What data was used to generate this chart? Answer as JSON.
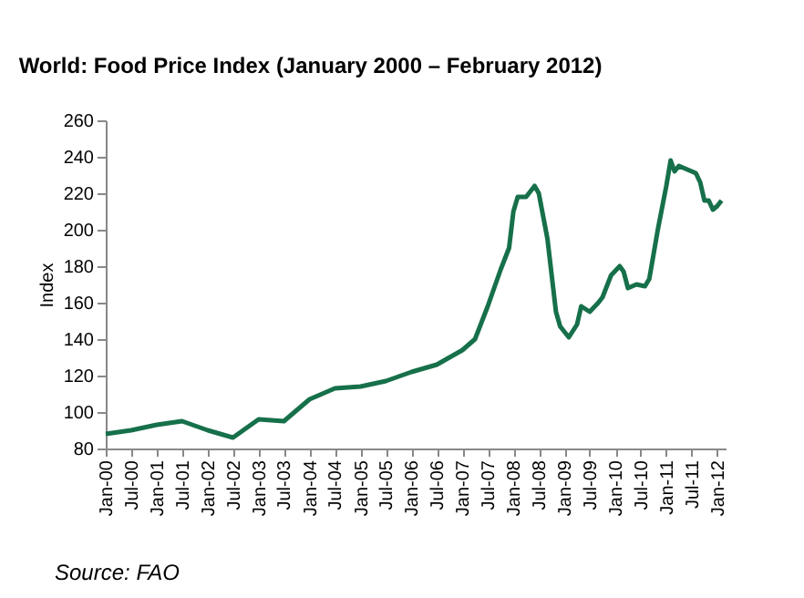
{
  "chart_data": {
    "type": "line",
    "title": "World: Food Price Index (January 2000 – February 2012)",
    "ylabel": "Index",
    "annotations": [
      "Source: FAO"
    ],
    "x": [
      "2000-01",
      "2000-07",
      "2001-01",
      "2001-07",
      "2002-01",
      "2002-07",
      "2003-01",
      "2003-07",
      "2004-01",
      "2004-07",
      "2005-01",
      "2005-07",
      "2006-01",
      "2006-07",
      "2007-01",
      "2007-04",
      "2007-07",
      "2007-10",
      "2007-12",
      "2008-01",
      "2008-02",
      "2008-04",
      "2008-06",
      "2008-07",
      "2008-09",
      "2008-11",
      "2008-12",
      "2009-02",
      "2009-04",
      "2009-05",
      "2009-07",
      "2009-09",
      "2009-10",
      "2009-12",
      "2010-02",
      "2010-03",
      "2010-04",
      "2010-06",
      "2010-08",
      "2010-09",
      "2010-11",
      "2011-01",
      "2011-02",
      "2011-03",
      "2011-04",
      "2011-06",
      "2011-08",
      "2011-09",
      "2011-10",
      "2011-11",
      "2011-12",
      "2012-01",
      "2012-02"
    ],
    "series": [
      {
        "color": "#16704a",
        "values": [
          88,
          90,
          93,
          95,
          90,
          86,
          96,
          95,
          107,
          113,
          114,
          117,
          122,
          126,
          134,
          140,
          158,
          178,
          190,
          210,
          218,
          218,
          224,
          220,
          195,
          155,
          147,
          141,
          148,
          158,
          155,
          160,
          163,
          175,
          180,
          177,
          168,
          170,
          169,
          173,
          200,
          224,
          238,
          232,
          235,
          233,
          231,
          226,
          216,
          216,
          211,
          213,
          216
        ]
      }
    ],
    "xlim": [
      "2000-01",
      "2012-03"
    ],
    "xticks": [
      {
        "value": "2000-01",
        "label": "Jan-00"
      },
      {
        "value": "2000-07",
        "label": "Jul-00"
      },
      {
        "value": "2001-01",
        "label": "Jan-01"
      },
      {
        "value": "2001-07",
        "label": "Jul-01"
      },
      {
        "value": "2002-01",
        "label": "Jan-02"
      },
      {
        "value": "2002-07",
        "label": "Jul-02"
      },
      {
        "value": "2003-01",
        "label": "Jan-03"
      },
      {
        "value": "2003-07",
        "label": "Jul-03"
      },
      {
        "value": "2004-01",
        "label": "Jan-04"
      },
      {
        "value": "2004-07",
        "label": "Jul-04"
      },
      {
        "value": "2005-01",
        "label": "Jan-05"
      },
      {
        "value": "2005-07",
        "label": "Jul-05"
      },
      {
        "value": "2006-01",
        "label": "Jan-06"
      },
      {
        "value": "2006-07",
        "label": "Jul-06"
      },
      {
        "value": "2007-01",
        "label": "Jan-07"
      },
      {
        "value": "2007-07",
        "label": "Jul-07"
      },
      {
        "value": "2008-01",
        "label": "Jan-08"
      },
      {
        "value": "2008-07",
        "label": "Jul-08"
      },
      {
        "value": "2009-01",
        "label": "Jan-09"
      },
      {
        "value": "2009-07",
        "label": "Jul-09"
      },
      {
        "value": "2010-01",
        "label": "Jan-10"
      },
      {
        "value": "2010-07",
        "label": "Jul-10"
      },
      {
        "value": "2011-01",
        "label": "Jan-11"
      },
      {
        "value": "2011-07",
        "label": "Jul-11"
      },
      {
        "value": "2012-01",
        "label": "Jan-12"
      }
    ],
    "ylim": [
      80,
      260
    ],
    "yticks": [
      80,
      100,
      120,
      140,
      160,
      180,
      200,
      220,
      240,
      260
    ],
    "grid": false,
    "line_style": "solid"
  }
}
